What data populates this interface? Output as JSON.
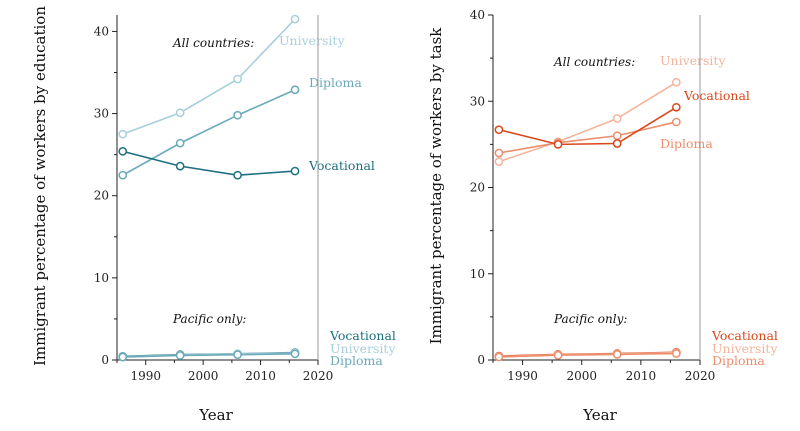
{
  "chart_data": [
    {
      "type": "line",
      "id": "education",
      "ylabel": "Immigrant percentage of workers by education",
      "xlabel": "Year",
      "xlim": [
        1985,
        2020
      ],
      "ylim": [
        0,
        42
      ],
      "xticks": [
        1990,
        2000,
        2010,
        2020
      ],
      "yticks": [
        0,
        10,
        20,
        30,
        40
      ],
      "x": [
        1986,
        1996,
        2006,
        2016
      ],
      "groups": [
        {
          "name": "All countries:",
          "series": [
            {
              "name": "University",
              "values": [
                27.5,
                30.1,
                34.2,
                41.5
              ],
              "color": "#a8cfdc"
            },
            {
              "name": "Diploma",
              "values": [
                22.5,
                26.4,
                29.8,
                32.9
              ],
              "color": "#6aa9ba"
            },
            {
              "name": "Vocational",
              "values": [
                25.4,
                23.6,
                22.5,
                23.0
              ],
              "color": "#1e6f80"
            }
          ]
        },
        {
          "name": "Pacific only:",
          "series": [
            {
              "name": "Vocational",
              "values": [
                0.45,
                0.65,
                0.75,
                0.9
              ],
              "color": "#1e6f80"
            },
            {
              "name": "University",
              "values": [
                0.4,
                0.6,
                0.75,
                0.85
              ],
              "color": "#a8cfdc"
            },
            {
              "name": "Diploma",
              "values": [
                0.35,
                0.55,
                0.65,
                0.75
              ],
              "color": "#6aa9ba"
            }
          ]
        }
      ]
    },
    {
      "type": "line",
      "id": "task",
      "ylabel": "Immigrant percentage of workers by task",
      "xlabel": "Year",
      "xlim": [
        1985,
        2020
      ],
      "ylim": [
        0,
        40
      ],
      "xticks": [
        1990,
        2000,
        2010,
        2020
      ],
      "yticks": [
        0,
        10,
        20,
        30,
        40
      ],
      "x": [
        1986,
        1996,
        2006,
        2016
      ],
      "groups": [
        {
          "name": "All countries:",
          "series": [
            {
              "name": "University",
              "values": [
                23.0,
                25.3,
                28.0,
                32.2
              ],
              "color": "#f4b49b"
            },
            {
              "name": "Diploma",
              "values": [
                24.0,
                25.2,
                26.0,
                27.6
              ],
              "color": "#ec8e6c"
            },
            {
              "name": "Vocational",
              "values": [
                26.7,
                25.0,
                25.1,
                29.3
              ],
              "color": "#d9471c"
            }
          ]
        },
        {
          "name": "Pacific only:",
          "series": [
            {
              "name": "Vocational",
              "values": [
                0.45,
                0.65,
                0.75,
                0.9
              ],
              "color": "#d9471c"
            },
            {
              "name": "University",
              "values": [
                0.4,
                0.6,
                0.7,
                0.85
              ],
              "color": "#f4b49b"
            },
            {
              "name": "Diploma",
              "values": [
                0.35,
                0.55,
                0.65,
                0.75
              ],
              "color": "#ec8e6c"
            }
          ]
        }
      ]
    }
  ]
}
